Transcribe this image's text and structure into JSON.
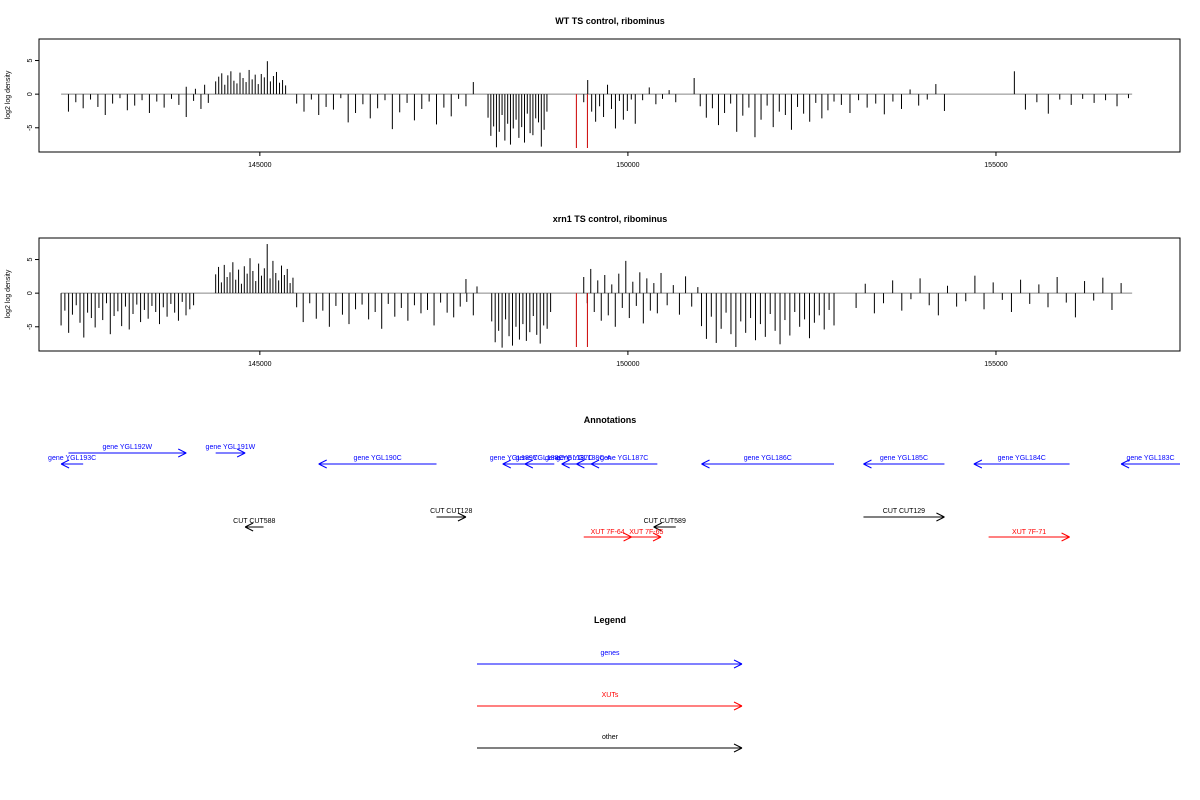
{
  "chart_data": [
    {
      "type": "bar",
      "title": "WT TS control, ribominus",
      "ylabel": "log2 log density",
      "xlim": [
        142000,
        157500
      ],
      "ylim": [
        -8.6,
        8.2
      ],
      "yticks": [
        -5,
        0,
        5
      ],
      "xticks": [
        145000,
        150000,
        155000
      ],
      "xtick_labels": [
        "145000",
        "150000",
        "155000"
      ],
      "ytick_labels": [
        "-5",
        "0",
        "5"
      ],
      "grid": false,
      "bar_color": "#000000",
      "marker_color": "#cc0000",
      "markers_x": [
        149300,
        149450
      ],
      "marker_range": [
        -8.6,
        0
      ],
      "segments": [
        {
          "x0": 142400,
          "x1": 144300,
          "values": [
            -2.6,
            -1.2,
            -2.1,
            -0.8,
            -1.9,
            -3.1,
            -1.4,
            -0.6,
            -2.4,
            -1.7,
            -0.9,
            -2.8,
            -1.1,
            -2.0,
            -0.7,
            -1.6,
            -3.4,
            -1.0,
            -2.2,
            -1.3
          ]
        },
        {
          "x0": 144000,
          "x1": 144250,
          "values": [
            1.1,
            0.8,
            1.4
          ]
        },
        {
          "x0": 144400,
          "x1": 145350,
          "values": [
            1.9,
            2.6,
            3.1,
            1.4,
            2.8,
            3.4,
            2.0,
            1.6,
            3.2,
            2.4,
            1.8,
            3.6,
            2.2,
            2.9,
            1.5,
            3.0,
            2.5,
            4.9,
            1.9,
            2.7,
            3.3,
            1.7,
            2.1,
            1.3
          ]
        },
        {
          "x0": 145500,
          "x1": 147800,
          "values": [
            -1.4,
            -2.6,
            -0.8,
            -3.1,
            -1.9,
            -2.3,
            -0.6,
            -4.2,
            -2.8,
            -1.5,
            -3.6,
            -2.1,
            -0.9,
            -5.2,
            -2.7,
            -1.3,
            -3.9,
            -2.2,
            -1.1,
            -4.5,
            -2.0,
            -3.3,
            -0.7,
            -1.8
          ]
        },
        {
          "x0": 147900,
          "x1": 148050,
          "values": [
            1.8
          ]
        },
        {
          "x0": 148100,
          "x1": 148900,
          "values": [
            -3.5,
            -6.2,
            -4.8,
            -7.9,
            -5.6,
            -3.1,
            -6.9,
            -4.4,
            -7.5,
            -5.1,
            -3.8,
            -6.5,
            -4.9,
            -7.2,
            -2.9,
            -5.8,
            -6.1,
            -3.6,
            -4.2,
            -7.8,
            -5.3,
            -2.6
          ]
        },
        {
          "x0": 149400,
          "x1": 150100,
          "values": [
            -1.2,
            2.1,
            -2.6,
            -4.1,
            -1.8,
            -3.4,
            1.4,
            -2.2,
            -5.1,
            -1.0,
            -3.8,
            -2.5,
            -0.8,
            -4.4
          ]
        },
        {
          "x0": 150200,
          "x1": 150650,
          "values": [
            -0.9,
            1.0,
            -1.5,
            -0.7,
            0.6,
            -1.2
          ]
        },
        {
          "x0": 150900,
          "x1": 152800,
          "values": [
            2.4,
            -1.8,
            -3.5,
            -2.1,
            -4.6,
            -2.8,
            -1.4,
            -5.6,
            -3.2,
            -2.0,
            -6.4,
            -3.8,
            -1.7,
            -4.9,
            -2.6,
            -3.1,
            -5.3,
            -1.9,
            -2.9,
            -4.1,
            -1.3,
            -3.6,
            -2.4,
            -1.1
          ]
        },
        {
          "x0": 152900,
          "x1": 154300,
          "values": [
            -1.6,
            -2.8,
            -0.9,
            -2.0,
            -1.4,
            -3.0,
            -1.1,
            -2.2,
            0.7,
            -1.7,
            -0.8,
            1.5,
            -2.5
          ]
        },
        {
          "x0": 155250,
          "x1": 155300,
          "values": [
            3.4
          ]
        },
        {
          "x0": 155400,
          "x1": 156800,
          "values": [
            -2.3,
            -1.2,
            -2.9,
            -0.8,
            -1.6,
            -0.7,
            -1.3,
            -0.9,
            -1.8,
            -0.6
          ]
        }
      ]
    },
    {
      "type": "bar",
      "title": "xrn1 TS control, ribominus",
      "ylabel": "log2 log density",
      "xlim": [
        142000,
        157500
      ],
      "ylim": [
        -8.6,
        8.2
      ],
      "yticks": [
        -5,
        0,
        5
      ],
      "xticks": [
        145000,
        150000,
        155000
      ],
      "xtick_labels": [
        "145000",
        "150000",
        "155000"
      ],
      "ytick_labels": [
        "-5",
        "0",
        "5"
      ],
      "grid": false,
      "bar_color": "#000000",
      "marker_color": "#cc0000",
      "markers_x": [
        149300,
        149450
      ],
      "marker_range": [
        -8.6,
        0
      ],
      "segments": [
        {
          "x0": 142300,
          "x1": 144100,
          "values": [
            -4.8,
            -2.6,
            -5.9,
            -3.2,
            -1.8,
            -4.4,
            -6.6,
            -2.9,
            -3.7,
            -5.1,
            -2.2,
            -4.0,
            -1.5,
            -6.1,
            -3.4,
            -2.7,
            -4.9,
            -2.0,
            -5.4,
            -3.1,
            -1.7,
            -4.3,
            -2.5,
            -3.8,
            -1.9,
            -2.8,
            -4.6,
            -2.1,
            -3.5,
            -1.6,
            -2.9,
            -4.1,
            -1.3,
            -3.3,
            -2.4,
            -1.8
          ]
        },
        {
          "x0": 144400,
          "x1": 145450,
          "values": [
            2.8,
            3.9,
            1.6,
            4.2,
            2.4,
            3.1,
            4.6,
            2.0,
            3.5,
            1.4,
            4.0,
            2.9,
            5.2,
            3.3,
            1.8,
            4.4,
            2.6,
            3.7,
            7.3,
            2.2,
            4.8,
            3.0,
            1.9,
            4.1,
            2.7,
            3.6,
            1.5,
            2.3
          ]
        },
        {
          "x0": 145500,
          "x1": 147900,
          "values": [
            -2.1,
            -4.3,
            -1.5,
            -3.8,
            -2.6,
            -5.0,
            -1.9,
            -3.2,
            -4.6,
            -2.4,
            -1.7,
            -3.9,
            -2.8,
            -5.3,
            -1.6,
            -3.5,
            -2.2,
            -4.1,
            -1.8,
            -3.0,
            -2.5,
            -4.8,
            -1.4,
            -2.9,
            -3.6,
            -2.0,
            -1.3,
            -3.3
          ]
        },
        {
          "x0": 147800,
          "x1": 147950,
          "values": [
            2.1,
            1.0
          ]
        },
        {
          "x0": 148150,
          "x1": 148950,
          "values": [
            -4.2,
            -7.3,
            -5.6,
            -8.1,
            -3.9,
            -6.4,
            -7.8,
            -5.0,
            -6.9,
            -4.6,
            -7.1,
            -5.8,
            -3.4,
            -6.2,
            -7.5,
            -4.8,
            -5.3,
            -2.8
          ]
        },
        {
          "x0": 149400,
          "x1": 150400,
          "values": [
            2.4,
            -1.5,
            3.6,
            -2.8,
            1.9,
            -4.1,
            2.7,
            -3.3,
            1.3,
            -5.0,
            2.9,
            -2.2,
            4.8,
            -3.7,
            1.7,
            -1.9,
            3.1,
            -4.5,
            2.2,
            -2.6,
            1.5,
            -3.0
          ]
        },
        {
          "x0": 150450,
          "x1": 150950,
          "values": [
            3.0,
            -1.8,
            1.2,
            -3.2,
            2.5,
            -2.0,
            0.9
          ]
        },
        {
          "x0": 151000,
          "x1": 152800,
          "values": [
            -4.9,
            -6.8,
            -3.5,
            -7.4,
            -5.3,
            -2.9,
            -6.1,
            -8.0,
            -4.2,
            -5.9,
            -3.7,
            -7.0,
            -4.6,
            -6.5,
            -3.1,
            -5.6,
            -7.6,
            -4.0,
            -6.3,
            -2.8,
            -5.0,
            -3.9,
            -6.7,
            -4.4,
            -3.3,
            -5.4,
            -2.5,
            -4.8
          ]
        },
        {
          "x0": 153100,
          "x1": 156700,
          "values": [
            -2.2,
            1.4,
            -3.0,
            -1.5,
            1.9,
            -2.6,
            -0.9,
            2.2,
            -1.8,
            -3.3,
            1.1,
            -2.0,
            -1.2,
            2.6,
            -2.4,
            1.6,
            -1.0,
            -2.8,
            2.0,
            -1.6,
            1.3,
            -2.1,
            2.4,
            -1.4,
            -3.6,
            1.8,
            -1.1,
            2.3,
            -2.5,
            1.5
          ]
        }
      ]
    }
  ],
  "annotations": {
    "title": "Annotations",
    "genes": [
      {
        "label": "gene YGL193C",
        "start": 142300,
        "end": 142600,
        "dir": "left",
        "row": 0
      },
      {
        "label": "gene YGL192W",
        "start": 142400,
        "end": 144000,
        "dir": "right",
        "row": -1
      },
      {
        "label": "gene YGL191W",
        "start": 144400,
        "end": 144800,
        "dir": "right",
        "row": -1
      },
      {
        "label": "gene YGL190C",
        "start": 145800,
        "end": 147400,
        "dir": "left",
        "row": 0
      },
      {
        "label": "gene YGL189C",
        "start": 148300,
        "end": 148600,
        "dir": "left",
        "row": 0
      },
      {
        "label": "gene YGL188C",
        "start": 148600,
        "end": 149000,
        "dir": "left",
        "row": 0
      },
      {
        "label": "gene YGL187C",
        "start": 149100,
        "end": 149300,
        "dir": "left",
        "row": 0
      },
      {
        "label": "gene YGL188C-A",
        "start": 149300,
        "end": 149500,
        "dir": "left",
        "row": 0
      },
      {
        "label": "gene YGL187C",
        "start": 149500,
        "end": 150400,
        "dir": "left",
        "row": 0
      },
      {
        "label": "gene YGL186C",
        "start": 151000,
        "end": 152800,
        "dir": "left",
        "row": 0
      },
      {
        "label": "gene YGL185C",
        "start": 153200,
        "end": 154300,
        "dir": "left",
        "row": 0
      },
      {
        "label": "gene YGL184C",
        "start": 154700,
        "end": 156000,
        "dir": "left",
        "row": 0
      },
      {
        "label": "gene YGL183C",
        "start": 156700,
        "end": 157500,
        "dir": "left",
        "row": 0
      }
    ],
    "cuts": [
      {
        "label": "CUT CUT588",
        "start": 144800,
        "end": 145050,
        "dir": "left",
        "row": 1
      },
      {
        "label": "CUT CUT128",
        "start": 147400,
        "end": 147800,
        "dir": "right",
        "row": 0
      },
      {
        "label": "CUT CUT589",
        "start": 150350,
        "end": 150650,
        "dir": "left",
        "row": 1
      },
      {
        "label": "CUT CUT129",
        "start": 153200,
        "end": 154300,
        "dir": "right",
        "row": 0
      }
    ],
    "xuts": [
      {
        "label": "XUT 7F-64",
        "start": 149400,
        "end": 150050,
        "dir": "right"
      },
      {
        "label": "XUT 7F-65",
        "start": 150050,
        "end": 150450,
        "dir": "right"
      },
      {
        "label": "XUT 7F-71",
        "start": 154900,
        "end": 156000,
        "dir": "right"
      }
    ]
  },
  "legend": {
    "title": "Legend",
    "items": [
      {
        "label": "genes",
        "color": "#0000ff"
      },
      {
        "label": "XUTs",
        "color": "#ff0000"
      },
      {
        "label": "other",
        "color": "#000000"
      }
    ]
  },
  "colors": {
    "genes": "#0000ff",
    "xuts": "#ff0000",
    "other": "#000000",
    "axis": "#000000",
    "baseline": "#888888"
  }
}
